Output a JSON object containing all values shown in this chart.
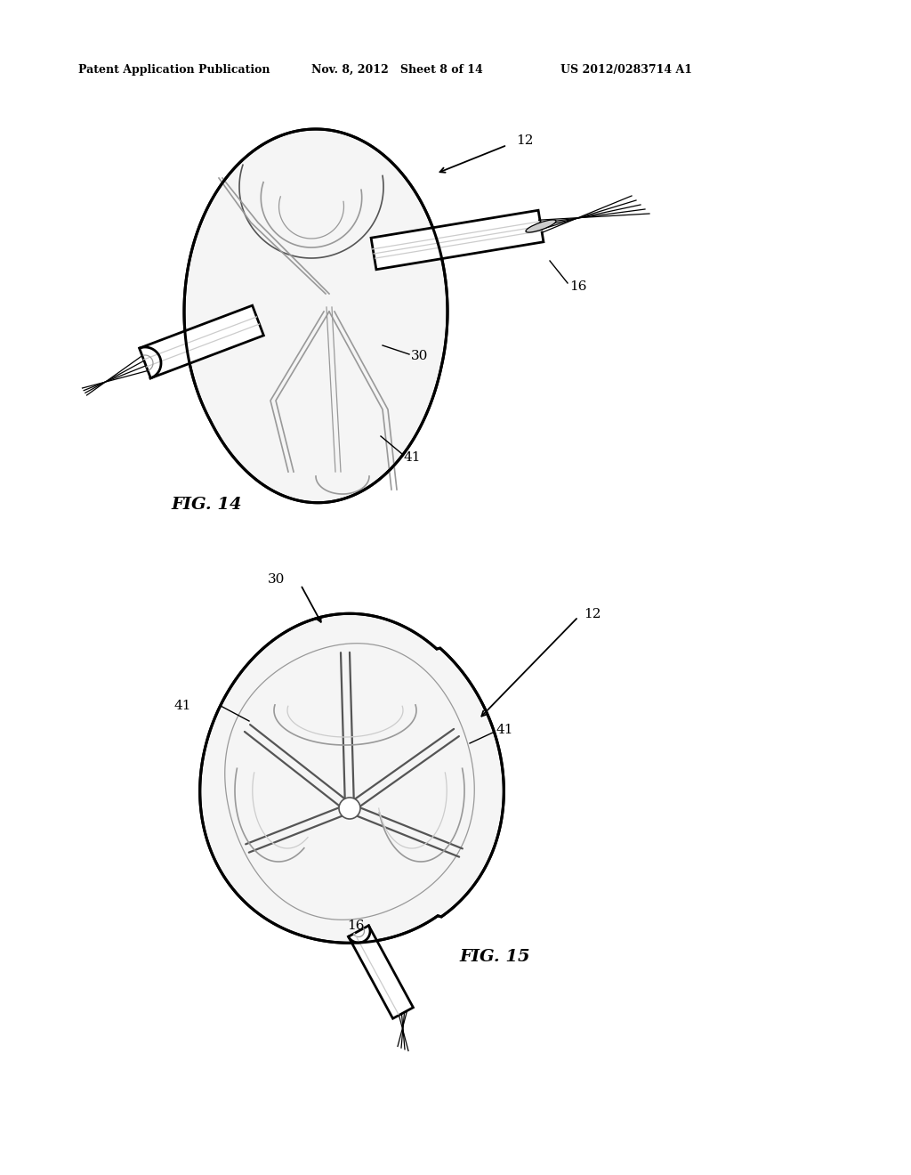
{
  "background_color": "#ffffff",
  "header_left": "Patent Application Publication",
  "header_mid": "Nov. 8, 2012   Sheet 8 of 14",
  "header_right": "US 2012/0283714 A1",
  "fig14_label": "FIG. 14",
  "fig15_label": "FIG. 15",
  "gray_light": "#cccccc",
  "gray_mid": "#999999",
  "gray_dark": "#555555",
  "black": "#000000",
  "white": "#ffffff",
  "fill_outer": "#f5f5f5",
  "fill_inner": "#eeeeee"
}
